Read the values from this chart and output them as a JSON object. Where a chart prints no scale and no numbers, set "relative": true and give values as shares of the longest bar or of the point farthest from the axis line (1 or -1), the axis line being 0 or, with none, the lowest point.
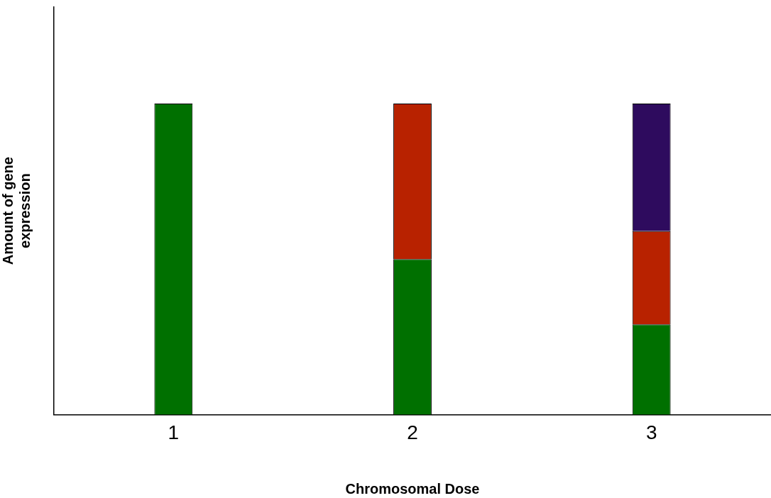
{
  "chart_data": {
    "type": "bar",
    "stacked": true,
    "relative": true,
    "xlabel": "Chromosomal Dose",
    "ylabel": "Amount of gene expression",
    "categories": [
      "1",
      "2",
      "3"
    ],
    "series": [
      {
        "color": "#007000",
        "values": [
          1,
          0.5,
          0.29
        ]
      },
      {
        "color": "#b82200",
        "values": [
          null,
          0.5,
          0.3
        ]
      },
      {
        "color": "#2e0b5e",
        "values": [
          null,
          null,
          0.41
        ]
      }
    ],
    "grid": false,
    "legend": false
  }
}
